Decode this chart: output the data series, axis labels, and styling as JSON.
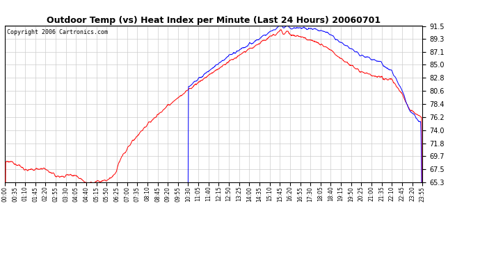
{
  "title": "Outdoor Temp (vs) Heat Index per Minute (Last 24 Hours) 20060701",
  "copyright": "Copyright 2006 Cartronics.com",
  "y_ticks": [
    65.3,
    67.5,
    69.7,
    71.8,
    74.0,
    76.2,
    78.4,
    80.6,
    82.8,
    85.0,
    87.1,
    89.3,
    91.5
  ],
  "ylim": [
    65.3,
    91.5
  ],
  "x_labels": [
    "00:00",
    "00:35",
    "01:10",
    "01:45",
    "02:20",
    "02:55",
    "03:30",
    "04:05",
    "04:40",
    "05:15",
    "05:50",
    "06:25",
    "07:00",
    "07:35",
    "08:10",
    "08:45",
    "09:20",
    "09:55",
    "10:30",
    "11:05",
    "11:40",
    "12:15",
    "12:50",
    "13:25",
    "14:00",
    "14:35",
    "15:10",
    "15:45",
    "16:20",
    "16:55",
    "17:30",
    "18:05",
    "18:40",
    "19:15",
    "19:50",
    "20:25",
    "21:00",
    "21:35",
    "22:10",
    "22:45",
    "23:20",
    "23:55"
  ],
  "red_color": "#ff0000",
  "blue_color": "#0000ff",
  "bg_color": "#ffffff",
  "grid_color": "#cccccc",
  "title_color": "#000000",
  "border_color": "#000000",
  "title_fontsize": 9,
  "copyright_fontsize": 6,
  "ytick_fontsize": 7,
  "xtick_fontsize": 5.5
}
